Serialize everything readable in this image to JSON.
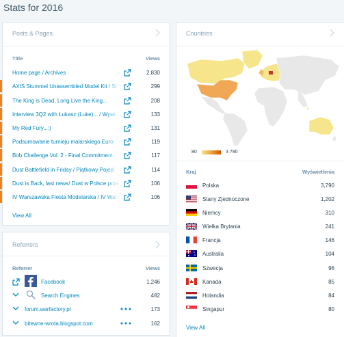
{
  "title": "Stats for 2016",
  "posts": {
    "title": "Posts & Pages",
    "col_title": "Title",
    "col_views": "Views",
    "view_all": "View All",
    "rows": [
      {
        "title": "Home page / Archives",
        "views": "2,830"
      },
      {
        "title": "AXIS Stummel Unassembled Model Kit / St",
        "views": "299"
      },
      {
        "title": "The King is Dead, Long Live the King...",
        "views": "208"
      },
      {
        "title": "Interview 3Q2 with Łukasz (Luke)... / Wywi",
        "views": "133"
      },
      {
        "title": "My Red Fury...:)",
        "views": "131"
      },
      {
        "title": "Podsumowanie turnieju malarskiego Euro",
        "views": "119"
      },
      {
        "title": "Bob Challenge Vol. 2 - Final Commitment",
        "views": "117"
      },
      {
        "title": "Dust Battlefield in Friday / Piątkowy Pojed",
        "views": "114"
      },
      {
        "title": "Dust is Back, last news/ Dust w Polsce prze",
        "views": "106"
      },
      {
        "title": "IV Warszawska Fiesta Modelarska / IV Wars",
        "views": "106"
      }
    ]
  },
  "referrers": {
    "title": "Referrers",
    "col_referrer": "Referrer",
    "col_views": "Views",
    "rows": [
      {
        "name": "Facebook",
        "views": "1,246"
      },
      {
        "name": "Search Engines",
        "views": "482"
      },
      {
        "name": "forum.warfactory.pl",
        "views": "173"
      },
      {
        "name": "bitewne-wrota.blogspot.com",
        "views": "162"
      }
    ]
  },
  "countries": {
    "title": "Countries",
    "legend_min": "80",
    "legend_max": "3 790",
    "col_country": "Kraj",
    "col_views": "Wyświetlenia",
    "view_all": "View All",
    "rows": [
      {
        "name": "Polska",
        "views": "3,790"
      },
      {
        "name": "Stany Zjednoczone",
        "views": "1,202"
      },
      {
        "name": "Niemcy",
        "views": "310"
      },
      {
        "name": "Wielka Brytania",
        "views": "241"
      },
      {
        "name": "Francja",
        "views": "146"
      },
      {
        "name": "Australia",
        "views": "104"
      },
      {
        "name": "Szwecja",
        "views": "96"
      },
      {
        "name": "Kanada",
        "views": "85"
      },
      {
        "name": "Holandia",
        "views": "84"
      },
      {
        "name": "Singapur",
        "views": "80"
      }
    ]
  }
}
